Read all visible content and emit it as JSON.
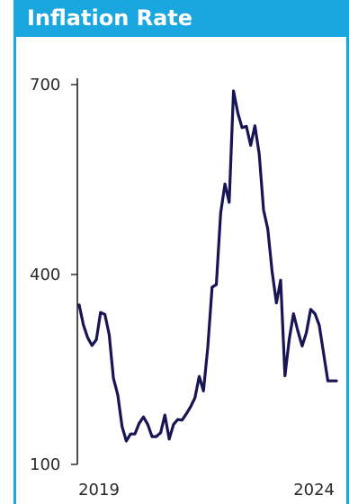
{
  "chart_data": {
    "type": "line",
    "title": "Inflation Rate",
    "xlabel": "",
    "ylabel": "",
    "x_tick_labels": [
      "2019",
      "2024"
    ],
    "y_tick_labels": [
      "700",
      "400",
      "100"
    ],
    "y_ticks": [
      700,
      400,
      100
    ],
    "ylim": [
      100,
      700
    ],
    "xlim": [
      "2019-01",
      "2024-01"
    ],
    "grid": false,
    "colors": {
      "line": "#191554",
      "accent": "#1aa6df",
      "axis": "#222222"
    },
    "series": [
      {
        "x": [
          "2019-01",
          "2019-02",
          "2019-03",
          "2019-04",
          "2019-05",
          "2019-06",
          "2019-07",
          "2019-08",
          "2019-09",
          "2019-10",
          "2019-11",
          "2019-12",
          "2020-01",
          "2020-02",
          "2020-03",
          "2020-04",
          "2020-05",
          "2020-06",
          "2020-07",
          "2020-08",
          "2020-09",
          "2020-10",
          "2020-11",
          "2020-12",
          "2021-01",
          "2021-02",
          "2021-03",
          "2021-04",
          "2021-05",
          "2021-06",
          "2021-07",
          "2021-08",
          "2021-09",
          "2021-10",
          "2021-11",
          "2021-12",
          "2022-01",
          "2022-02",
          "2022-03",
          "2022-04",
          "2022-05",
          "2022-06",
          "2022-07",
          "2022-08",
          "2022-09",
          "2022-10",
          "2022-11",
          "2022-12",
          "2023-01",
          "2023-02",
          "2023-03",
          "2023-04",
          "2023-05",
          "2023-06",
          "2023-07",
          "2023-08",
          "2023-09",
          "2023-10",
          "2023-11",
          "2023-12",
          "2024-01"
        ],
        "values": [
          352,
          320,
          300,
          288,
          297,
          340,
          337,
          305,
          236,
          210,
          160,
          137,
          148,
          148,
          165,
          175,
          163,
          144,
          144,
          150,
          178,
          140,
          163,
          171,
          170,
          180,
          191,
          205,
          239,
          216,
          285,
          380,
          384,
          497,
          543,
          514,
          690,
          655,
          632,
          634,
          604,
          635,
          590,
          502,
          472,
          405,
          355,
          391,
          240,
          298,
          338,
          311,
          287,
          308,
          345,
          338,
          320,
          276,
          232,
          232,
          232
        ]
      }
    ]
  }
}
